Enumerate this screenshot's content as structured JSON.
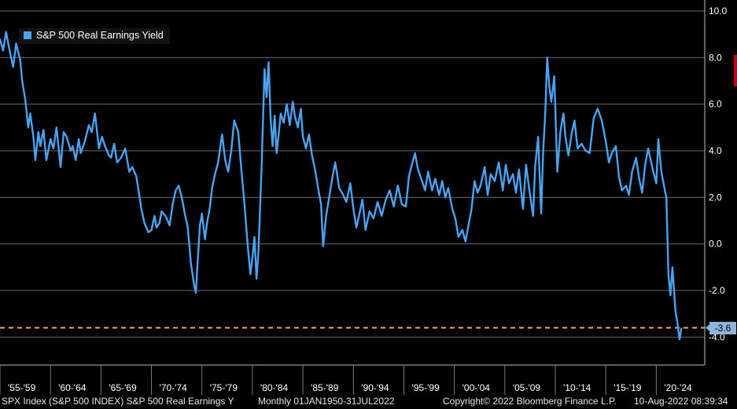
{
  "chart_data": {
    "type": "line",
    "legend": {
      "label": "S&P 500 Real Earnings Yield",
      "placement": "top-left"
    },
    "y_ticks": [
      "10.0",
      "8.0",
      "6.0",
      "4.0",
      "2.0",
      "0.0",
      "-2.0",
      "-4.0"
    ],
    "y_tick_values": [
      10,
      8,
      6,
      4,
      2,
      0,
      -2,
      -4
    ],
    "ylim": [
      -5.2,
      10.0
    ],
    "xlim": [
      1955.0,
      2024.8
    ],
    "x_ticks": [
      "'55-'59",
      "'60-'64",
      "'65-'69",
      "'70-'74",
      "'75-'79",
      "'80-'84",
      "'85-'89",
      "'90-'94",
      "'95-'99",
      "'00-'04",
      "'05-'09",
      "'10-'14",
      "'15-'19",
      "'20-'24"
    ],
    "grid": true,
    "reference_line": {
      "value": -3.6,
      "label": "-3.6",
      "color": "#f7a35c"
    },
    "series": [
      {
        "name": "S&P 500 Real Earnings Yield",
        "color": "#4aa3f0",
        "x": [
          1955.0,
          1955.3,
          1955.6,
          1956.0,
          1956.3,
          1956.6,
          1957.0,
          1957.2,
          1957.5,
          1957.8,
          1958.0,
          1958.3,
          1958.5,
          1958.8,
          1959.0,
          1959.3,
          1959.6,
          1960.0,
          1960.3,
          1960.6,
          1961.0,
          1961.3,
          1961.6,
          1962.0,
          1962.2,
          1962.5,
          1962.8,
          1963.0,
          1963.4,
          1963.8,
          1964.1,
          1964.4,
          1964.8,
          1965.1,
          1965.4,
          1965.8,
          1966.0,
          1966.3,
          1966.6,
          1967.0,
          1967.4,
          1967.8,
          1968.1,
          1968.5,
          1968.8,
          1969.0,
          1969.3,
          1969.7,
          1970.0,
          1970.3,
          1970.5,
          1970.8,
          1971.0,
          1971.4,
          1971.8,
          1972.1,
          1972.4,
          1972.7,
          1973.0,
          1973.3,
          1973.6,
          1973.9,
          1974.2,
          1974.4,
          1974.6,
          1974.8,
          1975.0,
          1975.3,
          1975.5,
          1975.8,
          1976.0,
          1976.3,
          1976.6,
          1977.0,
          1977.3,
          1977.6,
          1977.9,
          1978.2,
          1978.6,
          1978.9,
          1979.2,
          1979.5,
          1979.8,
          1980.0,
          1980.2,
          1980.4,
          1980.6,
          1980.9,
          1981.2,
          1981.4,
          1981.6,
          1981.8,
          1982.0,
          1982.2,
          1982.4,
          1982.6,
          1982.8,
          1983.1,
          1983.4,
          1983.7,
          1984.0,
          1984.2,
          1984.5,
          1984.8,
          1985.0,
          1985.3,
          1985.6,
          1985.9,
          1986.2,
          1986.5,
          1986.8,
          1987.0,
          1987.3,
          1987.6,
          1987.9,
          1988.2,
          1988.6,
          1989.0,
          1989.3,
          1989.7,
          1990.0,
          1990.3,
          1990.6,
          1990.9,
          1991.2,
          1991.6,
          1992.0,
          1992.4,
          1992.8,
          1993.2,
          1993.6,
          1994.0,
          1994.4,
          1994.8,
          1995.2,
          1995.5,
          1995.8,
          1996.1,
          1996.4,
          1996.8,
          1997.1,
          1997.4,
          1997.8,
          1998.1,
          1998.5,
          1998.8,
          1999.1,
          1999.4,
          1999.8,
          2000.1,
          2000.4,
          2000.8,
          2001.1,
          2001.4,
          2001.7,
          2002.0,
          2002.3,
          2002.6,
          2003.0,
          2003.3,
          2003.6,
          2004.0,
          2004.4,
          2004.8,
          2005.1,
          2005.4,
          2005.8,
          2006.1,
          2006.4,
          2006.8,
          2007.1,
          2007.4,
          2007.8,
          2008.0,
          2008.3,
          2008.6,
          2008.8,
          2009.0,
          2009.2,
          2009.4,
          2009.6,
          2009.9,
          2010.2,
          2010.5,
          2010.8,
          2011.0,
          2011.3,
          2011.6,
          2011.9,
          2012.2,
          2012.6,
          2013.0,
          2013.4,
          2013.8,
          2014.2,
          2014.6,
          2015.0,
          2015.3,
          2015.6,
          2016.0,
          2016.3,
          2016.6,
          2017.0,
          2017.3,
          2017.6,
          2018.0,
          2018.3,
          2018.6,
          2018.9,
          2019.2,
          2019.6,
          2020.0,
          2020.2,
          2020.5,
          2020.8,
          2021.0,
          2021.2,
          2021.4,
          2021.6,
          2021.9,
          2022.1,
          2022.3,
          2022.5
        ],
        "values": [
          8.8,
          8.3,
          9.1,
          8.2,
          7.6,
          8.6,
          7.9,
          7.0,
          6.2,
          5.0,
          5.6,
          4.6,
          3.6,
          4.8,
          4.2,
          4.9,
          3.6,
          4.5,
          4.1,
          5.0,
          3.3,
          4.8,
          4.6,
          4.0,
          4.2,
          3.6,
          4.5,
          3.9,
          4.4,
          5.1,
          4.8,
          5.6,
          4.1,
          4.6,
          4.2,
          3.8,
          3.7,
          4.3,
          3.5,
          3.7,
          4.1,
          3.1,
          3.3,
          2.9,
          2.1,
          1.5,
          0.9,
          0.5,
          0.6,
          1.2,
          0.7,
          0.9,
          1.4,
          1.2,
          0.8,
          1.7,
          2.3,
          2.5,
          2.0,
          1.3,
          0.7,
          -0.8,
          -1.7,
          -2.1,
          -0.6,
          0.8,
          1.3,
          0.2,
          0.9,
          1.6,
          2.4,
          3.0,
          3.5,
          4.7,
          3.6,
          3.1,
          4.0,
          5.3,
          4.8,
          3.2,
          1.8,
          0.1,
          -1.3,
          -0.6,
          0.3,
          -1.5,
          -0.3,
          3.2,
          7.5,
          6.3,
          7.8,
          5.4,
          4.2,
          5.5,
          3.9,
          4.7,
          5.6,
          5.2,
          6.0,
          5.1,
          6.1,
          5.5,
          5.0,
          5.8,
          4.6,
          4.1,
          4.7,
          3.8,
          3.2,
          2.4,
          1.7,
          -0.1,
          1.2,
          2.0,
          2.8,
          3.5,
          2.4,
          2.1,
          1.8,
          2.6,
          1.5,
          0.7,
          1.3,
          1.9,
          0.6,
          1.4,
          1.1,
          1.8,
          1.2,
          1.9,
          2.3,
          1.6,
          2.5,
          1.7,
          1.6,
          2.9,
          3.4,
          3.9,
          3.2,
          2.7,
          2.3,
          3.1,
          2.3,
          2.8,
          2.1,
          2.7,
          2.0,
          2.4,
          1.5,
          1.1,
          0.3,
          0.6,
          0.1,
          0.8,
          1.5,
          2.7,
          2.2,
          2.5,
          3.3,
          2.1,
          3.0,
          2.7,
          3.5,
          2.3,
          3.4,
          2.6,
          3.0,
          2.2,
          3.2,
          1.5,
          3.4,
          2.4,
          1.2,
          3.3,
          4.6,
          1.3,
          4.0,
          5.6,
          8.0,
          6.8,
          6.1,
          7.2,
          3.1,
          4.8,
          5.6,
          4.6,
          3.8,
          4.7,
          5.3,
          4.1,
          4.3,
          4.0,
          3.9,
          5.4,
          5.8,
          5.3,
          4.4,
          3.5,
          3.9,
          4.2,
          2.9,
          2.3,
          2.5,
          2.1,
          3.1,
          3.7,
          2.8,
          2.2,
          3.4,
          4.1,
          3.3,
          2.6,
          4.5,
          3.1,
          2.4,
          2.0,
          -1.3,
          -2.2,
          -1.0,
          -2.9,
          -3.4,
          -4.1,
          -3.6
        ]
      }
    ]
  },
  "footer": {
    "index": "SPX Index (S&P 500 INDEX) S&P 500 Real Earnings Y",
    "period": "Monthly 01JAN1950-31JUL2022",
    "copyright": "Copyright© 2022 Bloomberg Finance L.P.",
    "timestamp": "10-Aug-2022 08:39:34"
  }
}
